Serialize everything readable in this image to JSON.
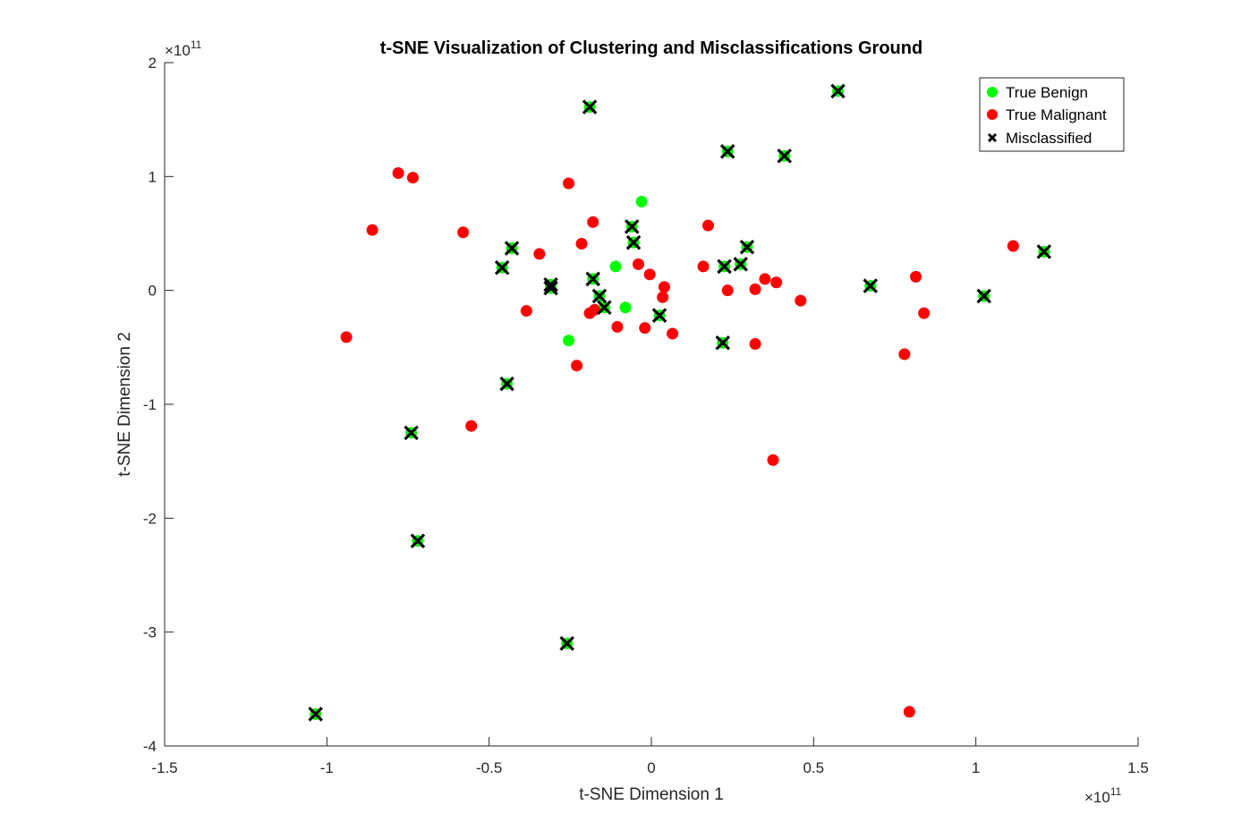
{
  "chart_data": {
    "type": "scatter",
    "title": "t-SNE Visualization of Clustering and Misclassifications Ground",
    "xlabel": "t-SNE Dimension 1",
    "ylabel": "t-SNE Dimension 2",
    "x_exponent_label": "×10",
    "x_exponent_power": "11",
    "y_exponent_label": "×10",
    "y_exponent_power": "11",
    "xlim": [
      -150000000000.0,
      150000000000.0
    ],
    "ylim": [
      -400000000000.0,
      200000000000.0
    ],
    "xticks": [
      -150000000000.0,
      -100000000000.0,
      -50000000000.0,
      0,
      50000000000.0,
      100000000000.0,
      150000000000.0
    ],
    "xtick_labels": [
      "-1.5",
      "-1",
      "-0.5",
      "0",
      "0.5",
      "1",
      "1.5"
    ],
    "yticks": [
      -400000000000.0,
      -300000000000.0,
      -200000000000.0,
      -100000000000.0,
      0,
      100000000000.0,
      200000000000.0
    ],
    "ytick_labels": [
      "-4",
      "-3",
      "-2",
      "-1",
      "0",
      "1",
      "2"
    ],
    "grid": false,
    "legend_position": "top-right",
    "series": [
      {
        "name": "True Benign",
        "marker": "circle",
        "color": "#00ff00",
        "points": [
          [
            -3000000000.0,
            78000000000.0
          ],
          [
            -11000000000.0,
            21000000000.0
          ],
          [
            -8000000000.0,
            -15000000000.0
          ],
          [
            -25500000000.0,
            -44000000000.0
          ],
          [
            -19000000000.0,
            161000000000.0
          ],
          [
            57500000000.0,
            175000000000.0
          ],
          [
            23500000000.0,
            122000000000.0
          ],
          [
            41000000000.0,
            118000000000.0
          ],
          [
            -6000000000.0,
            56000000000.0
          ],
          [
            -5500000000.0,
            42000000000.0
          ],
          [
            29500000000.0,
            38000000000.0
          ],
          [
            27500000000.0,
            23000000000.0
          ],
          [
            22500000000.0,
            21000000000.0
          ],
          [
            -43000000000.0,
            37000000000.0
          ],
          [
            -46000000000.0,
            20000000000.0
          ],
          [
            -31000000000.0,
            5000000000.0
          ],
          [
            -31000000000.0,
            2000000000.0
          ],
          [
            -18000000000.0,
            10000000000.0
          ],
          [
            -16000000000.0,
            -5000000000.0
          ],
          [
            -14500000000.0,
            -15000000000.0
          ],
          [
            2500000000.0,
            -22000000000.0
          ],
          [
            22000000000.0,
            -46000000000.0
          ],
          [
            67500000000.0,
            4000000000.0
          ],
          [
            102500000000.0,
            -5000000000.0
          ],
          [
            121000000000.0,
            34000000000.0
          ],
          [
            -44500000000.0,
            -82000000000.0
          ],
          [
            -74000000000.0,
            -125000000000.0
          ],
          [
            -72000000000.0,
            -220000000000.0
          ],
          [
            -26000000000.0,
            -310000000000.0
          ],
          [
            -103500000000.0,
            -372000000000.0
          ]
        ]
      },
      {
        "name": "True Malignant",
        "marker": "circle",
        "color": "#ff0000",
        "points": [
          [
            -78000000000.0,
            103000000000.0
          ],
          [
            -73500000000.0,
            99000000000.0
          ],
          [
            -86000000000.0,
            53000000000.0
          ],
          [
            -58000000000.0,
            51000000000.0
          ],
          [
            -25500000000.0,
            94000000000.0
          ],
          [
            -18000000000.0,
            60000000000.0
          ],
          [
            -21500000000.0,
            41000000000.0
          ],
          [
            -34500000000.0,
            32000000000.0
          ],
          [
            -38500000000.0,
            -18000000000.0
          ],
          [
            -94000000000.0,
            -41000000000.0
          ],
          [
            -55500000000.0,
            -119000000000.0
          ],
          [
            -23000000000.0,
            -66000000000.0
          ],
          [
            -19000000000.0,
            -20000000000.0
          ],
          [
            -17500000000.0,
            -17000000000.0
          ],
          [
            -10500000000.0,
            -32000000000.0
          ],
          [
            -4000000000.0,
            23000000000.0
          ],
          [
            -500000000.0,
            14000000000.0
          ],
          [
            4000000000.0,
            3000000000.0
          ],
          [
            3500000000.0,
            -6000000000.0
          ],
          [
            -2000000000.0,
            -33000000000.0
          ],
          [
            6500000000.0,
            -38000000000.0
          ],
          [
            17500000000.0,
            57000000000.0
          ],
          [
            16000000000.0,
            21000000000.0
          ],
          [
            23500000000.0,
            0.0
          ],
          [
            32000000000.0,
            1000000000.0
          ],
          [
            35000000000.0,
            10000000000.0
          ],
          [
            38500000000.0,
            7000000000.0
          ],
          [
            46000000000.0,
            -9000000000.0
          ],
          [
            32000000000.0,
            -47000000000.0
          ],
          [
            37500000000.0,
            -149000000000.0
          ],
          [
            78000000000.0,
            -56000000000.0
          ],
          [
            81500000000.0,
            12000000000.0
          ],
          [
            84000000000.0,
            -20000000000.0
          ],
          [
            111500000000.0,
            39000000000.0
          ],
          [
            79500000000.0,
            -370000000000.0
          ]
        ]
      },
      {
        "name": "Misclassified",
        "marker": "x",
        "color": "#000000",
        "points": [
          [
            -19000000000.0,
            161000000000.0
          ],
          [
            57500000000.0,
            175000000000.0
          ],
          [
            23500000000.0,
            122000000000.0
          ],
          [
            41000000000.0,
            118000000000.0
          ],
          [
            -6000000000.0,
            56000000000.0
          ],
          [
            -5500000000.0,
            42000000000.0
          ],
          [
            29500000000.0,
            38000000000.0
          ],
          [
            27500000000.0,
            23000000000.0
          ],
          [
            22500000000.0,
            21000000000.0
          ],
          [
            -43000000000.0,
            37000000000.0
          ],
          [
            -46000000000.0,
            20000000000.0
          ],
          [
            -31000000000.0,
            5000000000.0
          ],
          [
            -31000000000.0,
            2000000000.0
          ],
          [
            -18000000000.0,
            10000000000.0
          ],
          [
            -16000000000.0,
            -5000000000.0
          ],
          [
            -14500000000.0,
            -15000000000.0
          ],
          [
            2500000000.0,
            -22000000000.0
          ],
          [
            22000000000.0,
            -46000000000.0
          ],
          [
            67500000000.0,
            4000000000.0
          ],
          [
            102500000000.0,
            -5000000000.0
          ],
          [
            121000000000.0,
            34000000000.0
          ],
          [
            -44500000000.0,
            -82000000000.0
          ],
          [
            -74000000000.0,
            -125000000000.0
          ],
          [
            -72000000000.0,
            -220000000000.0
          ],
          [
            -26000000000.0,
            -310000000000.0
          ],
          [
            -103500000000.0,
            -372000000000.0
          ]
        ]
      }
    ]
  }
}
